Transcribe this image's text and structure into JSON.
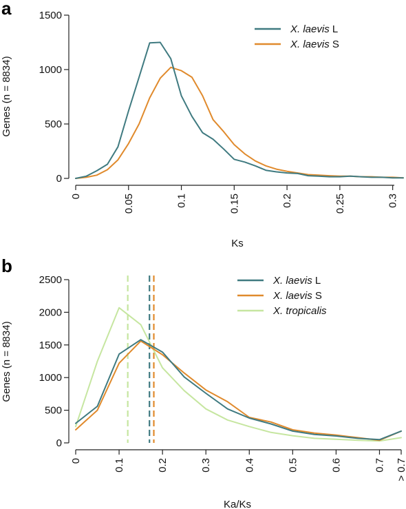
{
  "chart_data": [
    {
      "panel": "a",
      "type": "line",
      "title": "",
      "xlabel": "Ks",
      "ylabel": "Genes (n = 8834)",
      "xlim": [
        0,
        0.31
      ],
      "ylim": [
        0,
        1500
      ],
      "xticks": [
        "0",
        "0.05",
        "0.1",
        "0.15",
        "0.2",
        "0.25",
        "0.3"
      ],
      "yticks": [
        "0",
        "500",
        "1000",
        "1500"
      ],
      "grid": false,
      "legend": "top-right",
      "x": [
        0,
        0.01,
        0.02,
        0.03,
        0.04,
        0.05,
        0.06,
        0.07,
        0.08,
        0.09,
        0.1,
        0.11,
        0.12,
        0.13,
        0.14,
        0.15,
        0.16,
        0.17,
        0.18,
        0.19,
        0.2,
        0.21,
        0.22,
        0.23,
        0.24,
        0.25,
        0.26,
        0.27,
        0.28,
        0.29,
        0.3,
        0.31
      ],
      "series": [
        {
          "name_italic": "X. laevis",
          "name_suffix": "L",
          "color": "#3f7a80",
          "values": [
            0,
            20,
            70,
            130,
            290,
            620,
            930,
            1245,
            1250,
            1100,
            760,
            570,
            420,
            360,
            270,
            175,
            150,
            115,
            75,
            60,
            50,
            45,
            25,
            20,
            15,
            15,
            20,
            15,
            10,
            10,
            5,
            5
          ]
        },
        {
          "name_italic": "X. laevis",
          "name_suffix": "S",
          "color": "#e08a2c",
          "values": [
            0,
            10,
            30,
            80,
            170,
            320,
            500,
            740,
            920,
            1020,
            990,
            930,
            760,
            540,
            430,
            310,
            225,
            160,
            115,
            85,
            65,
            50,
            35,
            30,
            25,
            20,
            20,
            15,
            15,
            10,
            10,
            5
          ]
        }
      ]
    },
    {
      "panel": "b",
      "type": "line",
      "title": "",
      "xlabel": "Ka/Ks",
      "ylabel": "Genes (n = 8834)",
      "xlim": [
        0,
        0.75
      ],
      "ylim": [
        0,
        2500
      ],
      "xticks": [
        "0",
        "0.1",
        "0.2",
        "0.3",
        "0.4",
        "0.5",
        "0.6",
        "0.7",
        "> 0.7"
      ],
      "yticks": [
        "0",
        "500",
        "1000",
        "1500",
        "2000",
        "2500"
      ],
      "grid": false,
      "legend": "top-right",
      "x": [
        0,
        0.05,
        0.1,
        0.15,
        0.2,
        0.25,
        0.3,
        0.35,
        0.4,
        0.45,
        0.5,
        0.55,
        0.6,
        0.65,
        0.7,
        0.75
      ],
      "series": [
        {
          "name_italic": "X. laevis",
          "name_suffix": "L",
          "color": "#3f7a80",
          "values": [
            300,
            560,
            1360,
            1580,
            1390,
            1010,
            760,
            520,
            380,
            290,
            180,
            130,
            105,
            70,
            50,
            180
          ],
          "median": 0.17
        },
        {
          "name_italic": "X. laevis",
          "name_suffix": "S",
          "color": "#e08a2c",
          "values": [
            200,
            500,
            1220,
            1560,
            1350,
            1070,
            810,
            630,
            390,
            320,
            200,
            150,
            120,
            80,
            40,
            180
          ],
          "median": 0.18
        },
        {
          "name_italic": "X. tropicalis",
          "name_suffix": "",
          "color": "#c6e6a0",
          "values": [
            250,
            1250,
            2070,
            1810,
            1150,
            800,
            520,
            350,
            250,
            160,
            110,
            70,
            55,
            40,
            30,
            80
          ],
          "median": 0.12
        }
      ]
    }
  ]
}
